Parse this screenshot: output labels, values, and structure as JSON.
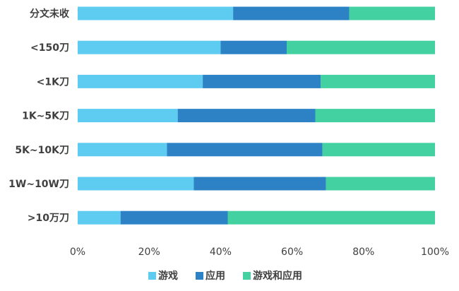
{
  "chart_data": {
    "type": "bar",
    "orientation": "horizontal",
    "stacked": true,
    "normalized_percent": true,
    "categories": [
      "分文未收",
      "<150刀",
      "<1K刀",
      "1K~5K刀",
      "5K~10K刀",
      "1W~10W刀",
      ">10万刀"
    ],
    "series": [
      {
        "name": "游戏",
        "color": "#5ecbf0",
        "values": [
          43.5,
          40,
          35,
          28,
          25,
          32.5,
          12
        ]
      },
      {
        "name": "应用",
        "color": "#2d82c6",
        "values": [
          32.5,
          18.5,
          33,
          38.5,
          43.5,
          37,
          30
        ]
      },
      {
        "name": "游戏和应用",
        "color": "#44d1a1",
        "values": [
          24,
          41.5,
          32,
          33.5,
          31.5,
          30.5,
          58
        ]
      }
    ],
    "xlim": [
      0,
      100
    ],
    "x_ticks": [
      "0%",
      "20%",
      "40%",
      "60%",
      "80%",
      "100%"
    ],
    "grid": false,
    "legend_position": "bottom",
    "title": "",
    "xlabel": "",
    "ylabel": ""
  }
}
